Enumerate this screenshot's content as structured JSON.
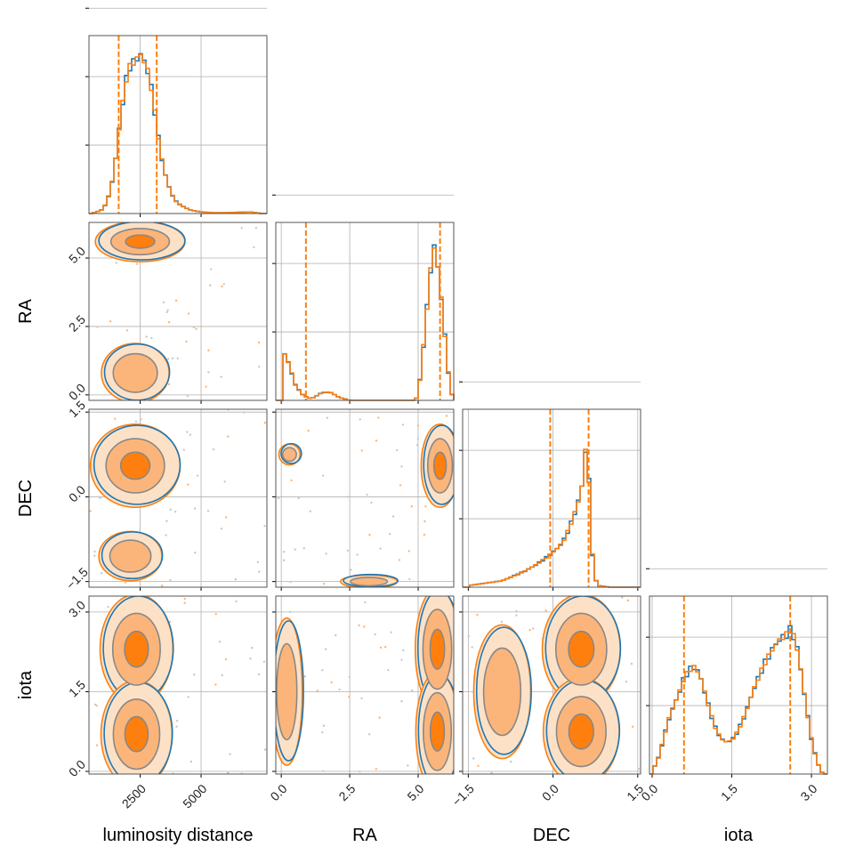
{
  "chart_data": {
    "type": "corner",
    "colors": {
      "series_a": "#1f77b4",
      "series_b": "#ff7f0e",
      "fill_light": "#fde1c6",
      "fill_mid": "#fbb57a",
      "fill_dark": "#ff7f0e",
      "grid": "#b0b0b0",
      "scatter": "#c8c8c8"
    },
    "grid": true,
    "parameters": [
      {
        "label": "luminosity distance",
        "range": [
          400,
          7700
        ],
        "ticks": [
          2500,
          5000
        ],
        "tick_labels": [
          "2500",
          "5000"
        ]
      },
      {
        "label": "RA",
        "range": [
          -0.2,
          6.3
        ],
        "ticks": [
          0.0,
          2.5,
          5.0
        ],
        "tick_labels": [
          "0.0",
          "2.5",
          "5.0"
        ]
      },
      {
        "label": "DEC",
        "range": [
          -1.6,
          1.55
        ],
        "ticks": [
          -1.5,
          0.0,
          1.5
        ],
        "tick_labels": [
          "−1.5",
          "0.0",
          "1.5"
        ]
      },
      {
        "label": "iota",
        "range": [
          -0.05,
          3.3
        ],
        "ticks": [
          0.0,
          1.5,
          3.0
        ],
        "tick_labels": [
          "0.0",
          "1.5",
          "3.0"
        ]
      }
    ],
    "marginals": [
      {
        "parameter": "luminosity distance",
        "quantiles": [
          1620,
          3180
        ],
        "series": [
          {
            "x": [
              500,
              900,
              1100,
              1300,
              1500,
              1700,
              1900,
              2100,
              2300,
              2500,
              2600,
              2800,
              3000,
              3200,
              3400,
              3600,
              3800,
              4000,
              4300,
              4600,
              5000,
              5500,
              6000,
              7000,
              7500
            ],
            "y": [
              0.0,
              0.02,
              0.06,
              0.15,
              0.35,
              0.6,
              0.82,
              0.93,
              0.95,
              1.0,
              0.97,
              0.9,
              0.75,
              0.52,
              0.33,
              0.2,
              0.12,
              0.07,
              0.04,
              0.02,
              0.01,
              0.005,
              0.005,
              0.01,
              0.0
            ]
          }
        ]
      },
      {
        "parameter": "RA",
        "quantiles": [
          0.9,
          5.8
        ],
        "series": [
          {
            "x": [
              0.0,
              0.1,
              0.3,
              0.5,
              0.8,
              1.1,
              1.5,
              1.8,
              2.1,
              2.5,
              3.0,
              3.5,
              4.0,
              4.5,
              4.8,
              5.0,
              5.2,
              5.4,
              5.55,
              5.65,
              5.8,
              5.95,
              6.1,
              6.25
            ],
            "y": [
              0.05,
              0.3,
              0.22,
              0.1,
              0.03,
              0.01,
              0.05,
              0.05,
              0.02,
              0.0,
              0.0,
              0.0,
              0.0,
              0.0,
              0.0,
              0.02,
              0.35,
              0.72,
              0.98,
              0.92,
              0.72,
              0.45,
              0.18,
              0.02
            ]
          }
        ]
      },
      {
        "parameter": "DEC",
        "quantiles": [
          -0.05,
          0.63
        ],
        "series": [
          {
            "x": [
              -1.5,
              -1.3,
              -1.1,
              -0.9,
              -0.7,
              -0.5,
              -0.3,
              -0.1,
              0.0,
              0.1,
              0.2,
              0.3,
              0.4,
              0.5,
              0.55,
              0.6,
              0.65,
              0.7,
              0.75,
              0.8,
              1.0,
              1.4
            ],
            "y": [
              0.01,
              0.02,
              0.03,
              0.04,
              0.07,
              0.1,
              0.14,
              0.19,
              0.22,
              0.25,
              0.3,
              0.38,
              0.48,
              0.6,
              0.75,
              0.97,
              0.55,
              0.2,
              0.05,
              0.01,
              0.0,
              0.0
            ]
          }
        ]
      },
      {
        "parameter": "iota",
        "quantiles": [
          0.6,
          2.6
        ],
        "series": [
          {
            "x": [
              0.0,
              0.1,
              0.2,
              0.3,
              0.4,
              0.5,
              0.6,
              0.7,
              0.8,
              0.9,
              1.0,
              1.1,
              1.2,
              1.3,
              1.4,
              1.5,
              1.6,
              1.7,
              1.8,
              1.9,
              2.0,
              2.1,
              2.2,
              2.3,
              2.4,
              2.5,
              2.6,
              2.7,
              2.8,
              2.9,
              3.0,
              3.1,
              3.2
            ],
            "y": [
              0.02,
              0.08,
              0.2,
              0.33,
              0.42,
              0.5,
              0.6,
              0.65,
              0.67,
              0.62,
              0.5,
              0.38,
              0.28,
              0.22,
              0.2,
              0.21,
              0.26,
              0.33,
              0.42,
              0.52,
              0.6,
              0.68,
              0.74,
              0.8,
              0.84,
              0.86,
              0.9,
              0.84,
              0.65,
              0.42,
              0.22,
              0.08,
              0.01
            ]
          }
        ]
      }
    ],
    "joint": [
      {
        "x": "luminosity distance",
        "y": "RA",
        "modes": [
          {
            "cx": 2500,
            "cy": 5.6,
            "sx": 800,
            "sy": 0.32,
            "w": 1.0
          },
          {
            "cx": 2300,
            "cy": 0.8,
            "sx": 900,
            "sy": 0.7,
            "w": 0.45
          }
        ]
      },
      {
        "x": "luminosity distance",
        "y": "DEC",
        "modes": [
          {
            "cx": 2300,
            "cy": 0.55,
            "sx": 800,
            "sy": 0.32,
            "w": 1.0
          },
          {
            "cx": 2100,
            "cy": -1.05,
            "sx": 950,
            "sy": 0.32,
            "w": 0.35
          }
        ]
      },
      {
        "x": "RA",
        "y": "DEC",
        "modes": [
          {
            "cx": 5.8,
            "cy": 0.55,
            "sx": 0.3,
            "sy": 0.32,
            "w": 1.0
          },
          {
            "cx": 0.3,
            "cy": 0.75,
            "sx": 0.25,
            "sy": 0.12,
            "w": 0.45
          },
          {
            "cx": 3.2,
            "cy": -1.5,
            "sx": 0.9,
            "sy": 0.1,
            "w": 0.25
          }
        ]
      },
      {
        "x": "luminosity distance",
        "y": "iota",
        "modes": [
          {
            "cx": 2350,
            "cy": 2.3,
            "sx": 650,
            "sy": 0.45,
            "w": 1.0
          },
          {
            "cx": 2350,
            "cy": 0.7,
            "sx": 650,
            "sy": 0.45,
            "w": 0.95
          }
        ]
      },
      {
        "x": "RA",
        "y": "iota",
        "modes": [
          {
            "cx": 5.7,
            "cy": 2.3,
            "sx": 0.35,
            "sy": 0.5,
            "w": 1.0
          },
          {
            "cx": 5.7,
            "cy": 0.75,
            "sx": 0.35,
            "sy": 0.5,
            "w": 0.95
          },
          {
            "cx": 0.2,
            "cy": 1.5,
            "sx": 0.45,
            "sy": 1.1,
            "w": 0.3
          }
        ]
      },
      {
        "x": "DEC",
        "y": "iota",
        "modes": [
          {
            "cx": 0.5,
            "cy": 2.3,
            "sx": 0.3,
            "sy": 0.45,
            "w": 1.0
          },
          {
            "cx": 0.5,
            "cy": 0.75,
            "sx": 0.3,
            "sy": 0.45,
            "w": 0.95
          },
          {
            "cx": -0.9,
            "cy": 1.5,
            "sx": 0.4,
            "sy": 1.0,
            "w": 0.3
          }
        ]
      }
    ]
  }
}
